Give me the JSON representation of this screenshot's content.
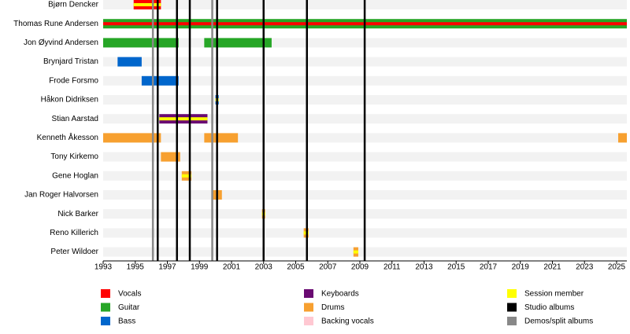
{
  "chart_data": {
    "type": "timeline",
    "members": [
      {
        "name": "Bjørn Dencker",
        "bars": [
          {
            "roles": [
              "Vocals",
              "Session member"
            ],
            "start": 1994.9,
            "end": 1996.6
          }
        ]
      },
      {
        "name": "Thomas Rune Andersen",
        "bars": [
          {
            "roles": [
              "Guitar",
              "Vocals"
            ],
            "start": 1993,
            "end": 2025.64
          }
        ]
      },
      {
        "name": "Jon Øyvind Andersen",
        "bars": [
          {
            "roles": [
              "Guitar"
            ],
            "start": 1993,
            "end": 1997.7
          },
          {
            "roles": [
              "Guitar"
            ],
            "start": 1999.3,
            "end": 2003.5
          }
        ]
      },
      {
        "name": "Brynjard Tristan",
        "bars": [
          {
            "roles": [
              "Bass"
            ],
            "start": 1993.9,
            "end": 1995.4
          }
        ]
      },
      {
        "name": "Frode Forsmo",
        "bars": [
          {
            "roles": [
              "Bass"
            ],
            "start": 1995.4,
            "end": 1997.7
          }
        ]
      },
      {
        "name": "Håkon Didriksen",
        "bars": [
          {
            "roles": [
              "Bass",
              "Session member"
            ],
            "start": 2000.0,
            "end": 2000.2
          }
        ]
      },
      {
        "name": "Stian Aarstad",
        "bars": [
          {
            "roles": [
              "Keyboards",
              "Session member"
            ],
            "start": 1996.5,
            "end": 1999.5
          }
        ]
      },
      {
        "name": "Kenneth Åkesson",
        "bars": [
          {
            "roles": [
              "Drums"
            ],
            "start": 1993,
            "end": 1996.6
          },
          {
            "roles": [
              "Drums"
            ],
            "start": 1999.3,
            "end": 2001.4
          },
          {
            "roles": [
              "Drums"
            ],
            "start": 2025.1,
            "end": 2025.64
          }
        ]
      },
      {
        "name": "Tony Kirkemo",
        "bars": [
          {
            "roles": [
              "Drums"
            ],
            "start": 1996.6,
            "end": 1997.8
          }
        ]
      },
      {
        "name": "Gene Hoglan",
        "bars": [
          {
            "roles": [
              "Drums",
              "Session member"
            ],
            "start": 1997.9,
            "end": 1998.5
          }
        ]
      },
      {
        "name": "Jan Roger Halvorsen",
        "bars": [
          {
            "roles": [
              "Drums"
            ],
            "start": 1999.8,
            "end": 2000.4
          }
        ]
      },
      {
        "name": "Nick Barker",
        "bars": [
          {
            "roles": [
              "Drums",
              "Session member"
            ],
            "start": 2002.9,
            "end": 2003.1
          }
        ]
      },
      {
        "name": "Reno Killerich",
        "bars": [
          {
            "roles": [
              "Drums",
              "Session member"
            ],
            "start": 2005.5,
            "end": 2005.8
          }
        ]
      },
      {
        "name": "Peter Wildoer",
        "bars": [
          {
            "roles": [
              "Drums",
              "Session member"
            ],
            "start": 2008.6,
            "end": 2008.9
          }
        ]
      }
    ],
    "events": [
      {
        "name": "Demos/split albums",
        "years": [
          1996.1,
          1999.8
        ]
      },
      {
        "name": "Studio albums",
        "years": [
          1996.4,
          1997.6,
          1998.4,
          2000.1,
          2003.0,
          2005.7,
          2009.3
        ]
      }
    ],
    "xlim": [
      1993,
      2025.64
    ],
    "xticks": [
      1993,
      1995,
      1997,
      1999,
      2001,
      2003,
      2005,
      2007,
      2009,
      2011,
      2013,
      2015,
      2017,
      2019,
      2021,
      2023,
      2025
    ],
    "legend": [
      {
        "name": "Vocals",
        "color": "#ff0000"
      },
      {
        "name": "Guitar",
        "color": "#26a626"
      },
      {
        "name": "Bass",
        "color": "#0066cc"
      },
      {
        "name": "Keyboards",
        "color": "#6a0a72"
      },
      {
        "name": "Drums",
        "color": "#f7a030"
      },
      {
        "name": "Backing vocals",
        "color": "#ffc8d2"
      },
      {
        "name": "Session member",
        "color": "#ffff00"
      },
      {
        "name": "Studio albums",
        "color": "#000000"
      },
      {
        "name": "Demos/split albums",
        "color": "#888888"
      }
    ]
  }
}
